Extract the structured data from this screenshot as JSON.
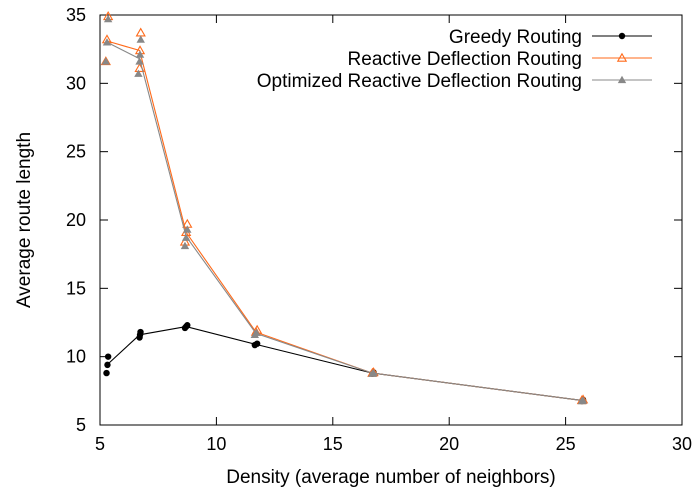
{
  "chart_data": {
    "type": "line",
    "xlabel": "Density (average number of neighbors)",
    "ylabel": "Average route length",
    "xlim": [
      5,
      30
    ],
    "ylim": [
      5,
      35
    ],
    "xticks": [
      5,
      10,
      15,
      20,
      25,
      30
    ],
    "yticks": [
      5,
      10,
      15,
      20,
      25,
      30,
      35
    ],
    "legend_position": "top-right",
    "grid": false,
    "series": [
      {
        "name": "Greedy Routing",
        "color": "#000000",
        "marker": "circle",
        "line": [
          [
            5.3,
            9.4
          ],
          [
            6.7,
            11.6
          ],
          [
            8.7,
            12.2
          ],
          [
            11.7,
            10.9
          ],
          [
            16.7,
            8.8
          ],
          [
            25.7,
            6.8
          ]
        ],
        "points": [
          [
            5.28,
            8.8
          ],
          [
            5.32,
            9.4
          ],
          [
            5.35,
            10.0
          ],
          [
            6.7,
            11.4
          ],
          [
            6.72,
            11.6
          ],
          [
            6.74,
            11.8
          ],
          [
            8.65,
            12.1
          ],
          [
            8.7,
            12.2
          ],
          [
            8.75,
            12.3
          ],
          [
            11.65,
            10.85
          ],
          [
            11.75,
            10.95
          ],
          [
            16.7,
            8.75
          ],
          [
            16.75,
            8.85
          ],
          [
            25.7,
            6.75
          ],
          [
            25.75,
            6.85
          ]
        ]
      },
      {
        "name": "Reactive Deflection Routing",
        "color": "#ff6a1a",
        "marker": "triangle-open",
        "line": [
          [
            5.3,
            33.1
          ],
          [
            6.7,
            32.4
          ],
          [
            8.7,
            19.1
          ],
          [
            11.7,
            11.8
          ],
          [
            16.7,
            8.8
          ],
          [
            25.7,
            6.8
          ]
        ],
        "points": [
          [
            5.25,
            31.6
          ],
          [
            5.3,
            33.2
          ],
          [
            5.35,
            34.9
          ],
          [
            6.7,
            31.1
          ],
          [
            6.72,
            32.4
          ],
          [
            6.75,
            33.7
          ],
          [
            8.65,
            18.4
          ],
          [
            8.7,
            19.1
          ],
          [
            8.75,
            19.7
          ],
          [
            11.7,
            11.8
          ],
          [
            11.75,
            11.95
          ],
          [
            16.7,
            8.8
          ],
          [
            16.75,
            8.85
          ],
          [
            25.7,
            6.8
          ],
          [
            25.75,
            6.85
          ]
        ]
      },
      {
        "name": "Optimized Reactive Deflection Routing",
        "color": "#888888",
        "marker": "triangle-filled",
        "line": [
          [
            5.3,
            33.0
          ],
          [
            6.7,
            31.8
          ],
          [
            8.7,
            18.8
          ],
          [
            11.7,
            11.7
          ],
          [
            16.7,
            8.8
          ],
          [
            25.7,
            6.8
          ]
        ],
        "points": [
          [
            5.25,
            31.6
          ],
          [
            5.3,
            33.0
          ],
          [
            5.35,
            34.7
          ],
          [
            6.65,
            30.7
          ],
          [
            6.7,
            31.6
          ],
          [
            6.72,
            32.1
          ],
          [
            6.75,
            33.2
          ],
          [
            8.65,
            18.1
          ],
          [
            8.7,
            18.7
          ],
          [
            8.75,
            19.3
          ],
          [
            11.65,
            11.6
          ],
          [
            11.72,
            11.75
          ],
          [
            16.7,
            8.75
          ],
          [
            16.75,
            8.8
          ],
          [
            25.7,
            6.75
          ],
          [
            25.75,
            6.8
          ]
        ]
      }
    ]
  }
}
